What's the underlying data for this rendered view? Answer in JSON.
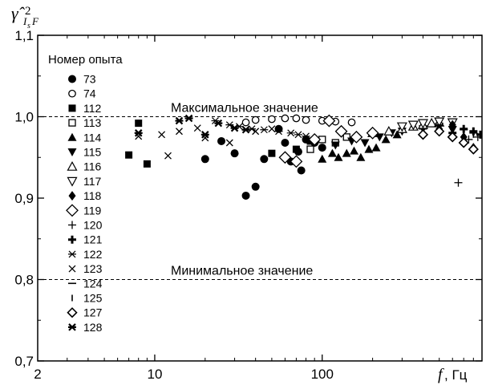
{
  "chart_data": {
    "type": "scatter",
    "title": "",
    "ylabel": {
      "main": "γ̂",
      "subscript": "I",
      "sub_subscript": "s",
      "subscript_end": "F",
      "superscript": "2"
    },
    "xlabel": {
      "variable": "f",
      "unit": ", Гц"
    },
    "x_scale": "log",
    "xlim": [
      2,
      900
    ],
    "ylim": [
      0.7,
      1.1
    ],
    "x_ticks": [
      {
        "value": 2,
        "label": "2"
      },
      {
        "value": 10,
        "label": "10"
      },
      {
        "value": 100,
        "label": "100"
      }
    ],
    "y_ticks": [
      {
        "value": 0.7,
        "label": "0,7"
      },
      {
        "value": 0.8,
        "label": "0,8"
      },
      {
        "value": 0.9,
        "label": "0,9"
      },
      {
        "value": 1.0,
        "label": "1,0"
      },
      {
        "value": 1.1,
        "label": "1,1"
      }
    ],
    "grid": false,
    "legend": {
      "title": "Номер опыта",
      "placement": "top-left"
    },
    "reference_lines": [
      {
        "y": 1.0,
        "label": "Максимальное значение",
        "style": "dashed"
      },
      {
        "y": 0.8,
        "label": "Минимальное значение",
        "style": "dashed"
      }
    ],
    "series": [
      {
        "name": "73",
        "marker": "circle-filled",
        "points": [
          [
            20,
            0.948
          ],
          [
            25,
            0.97
          ],
          [
            30,
            0.955
          ],
          [
            35,
            0.903
          ],
          [
            40,
            0.914
          ],
          [
            45,
            0.948
          ],
          [
            55,
            0.985
          ],
          [
            60,
            0.968
          ],
          [
            65,
            0.945
          ],
          [
            72,
            0.957
          ],
          [
            75,
            0.934
          ],
          [
            80,
            0.972
          ],
          [
            90,
            0.968
          ],
          [
            100,
            0.962
          ]
        ]
      },
      {
        "name": "74",
        "marker": "circle-open",
        "points": [
          [
            35,
            0.993
          ],
          [
            40,
            0.996
          ],
          [
            50,
            0.997
          ],
          [
            60,
            0.998
          ],
          [
            70,
            0.998
          ],
          [
            80,
            0.996
          ],
          [
            100,
            0.995
          ],
          [
            120,
            0.994
          ],
          [
            150,
            0.993
          ]
        ]
      },
      {
        "name": "112",
        "marker": "square-filled",
        "points": [
          [
            7,
            0.953
          ],
          [
            8,
            0.992
          ],
          [
            9,
            0.942
          ],
          [
            50,
            0.955
          ],
          [
            70,
            0.96
          ],
          [
            85,
            0.97
          ]
        ]
      },
      {
        "name": "113",
        "marker": "square-open",
        "points": [
          [
            85,
            0.96
          ],
          [
            100,
            0.972
          ],
          [
            120,
            0.968
          ],
          [
            140,
            0.975
          ]
        ]
      },
      {
        "name": "114",
        "marker": "triangle-up-filled",
        "points": [
          [
            100,
            0.948
          ],
          [
            115,
            0.955
          ],
          [
            125,
            0.95
          ],
          [
            140,
            0.955
          ],
          [
            155,
            0.958
          ],
          [
            170,
            0.95
          ],
          [
            190,
            0.96
          ],
          [
            210,
            0.962
          ],
          [
            240,
            0.972
          ],
          [
            280,
            0.978
          ]
        ]
      },
      {
        "name": "115",
        "marker": "triangle-down-filled",
        "points": [
          [
            120,
            0.965
          ],
          [
            150,
            0.97
          ],
          [
            180,
            0.968
          ],
          [
            220,
            0.975
          ],
          [
            260,
            0.98
          ],
          [
            300,
            0.982
          ],
          [
            400,
            0.985
          ],
          [
            500,
            0.988
          ],
          [
            600,
            0.984
          ]
        ]
      },
      {
        "name": "116",
        "marker": "triangle-up-open",
        "points": [
          [
            200,
            0.98
          ],
          [
            250,
            0.982
          ],
          [
            300,
            0.985
          ],
          [
            350,
            0.988
          ],
          [
            400,
            0.99
          ],
          [
            450,
            0.992
          ],
          [
            500,
            0.993
          ]
        ]
      },
      {
        "name": "117",
        "marker": "triangle-down-open",
        "points": [
          [
            300,
            0.988
          ],
          [
            350,
            0.99
          ],
          [
            400,
            0.992
          ],
          [
            500,
            0.994
          ],
          [
            600,
            0.993
          ]
        ]
      },
      {
        "name": "118",
        "marker": "diamond-filled",
        "points": [
          [
            500,
            0.985
          ],
          [
            600,
            0.99
          ],
          [
            700,
            0.975
          ],
          [
            800,
            0.962
          ]
        ]
      },
      {
        "name": "119",
        "marker": "diamond-open",
        "points": [
          [
            60,
            0.95
          ],
          [
            70,
            0.945
          ],
          [
            90,
            0.972
          ],
          [
            110,
            0.995
          ],
          [
            130,
            0.982
          ],
          [
            160,
            0.975
          ],
          [
            200,
            0.98
          ]
        ]
      },
      {
        "name": "120",
        "marker": "plus",
        "points": [
          [
            650,
            0.919
          ],
          [
            750,
            0.972
          ],
          [
            850,
            0.975
          ]
        ]
      },
      {
        "name": "121",
        "marker": "plus-bold",
        "points": [
          [
            600,
            0.98
          ],
          [
            700,
            0.985
          ],
          [
            800,
            0.982
          ],
          [
            880,
            0.978
          ]
        ]
      },
      {
        "name": "122",
        "marker": "asterisk",
        "points": [
          [
            23,
            0.995
          ],
          [
            28,
            0.99
          ],
          [
            32,
            0.988
          ],
          [
            38,
            0.985
          ],
          [
            45,
            0.984
          ],
          [
            55,
            0.982
          ],
          [
            65,
            0.98
          ],
          [
            72,
            0.978
          ],
          [
            80,
            0.976
          ]
        ]
      },
      {
        "name": "123",
        "marker": "x",
        "points": [
          [
            8,
            0.976
          ],
          [
            11,
            0.978
          ],
          [
            12,
            0.952
          ],
          [
            14,
            0.982
          ],
          [
            18,
            0.986
          ],
          [
            20,
            0.974
          ],
          [
            28,
            0.968
          ],
          [
            40,
            0.982
          ],
          [
            50,
            0.985
          ]
        ]
      },
      {
        "name": "124",
        "marker": "hline",
        "points": [
          [
            400,
            0.985
          ],
          [
            500,
            0.99
          ],
          [
            600,
            0.988
          ],
          [
            700,
            0.984
          ],
          [
            800,
            0.98
          ]
        ]
      },
      {
        "name": "125",
        "marker": "vline",
        "points": [
          [
            500,
            0.982
          ],
          [
            600,
            0.985
          ],
          [
            700,
            0.98
          ],
          [
            800,
            0.978
          ]
        ]
      },
      {
        "name": "127",
        "marker": "diamond-open-small",
        "points": [
          [
            400,
            0.978
          ],
          [
            500,
            0.982
          ],
          [
            600,
            0.975
          ],
          [
            700,
            0.968
          ],
          [
            800,
            0.96
          ]
        ]
      },
      {
        "name": "128",
        "marker": "asterisk-bold",
        "points": [
          [
            8,
            0.98
          ],
          [
            14,
            0.995
          ],
          [
            16,
            0.998
          ],
          [
            20,
            0.978
          ],
          [
            24,
            0.992
          ],
          [
            30,
            0.986
          ],
          [
            35,
            0.984
          ]
        ]
      }
    ]
  }
}
